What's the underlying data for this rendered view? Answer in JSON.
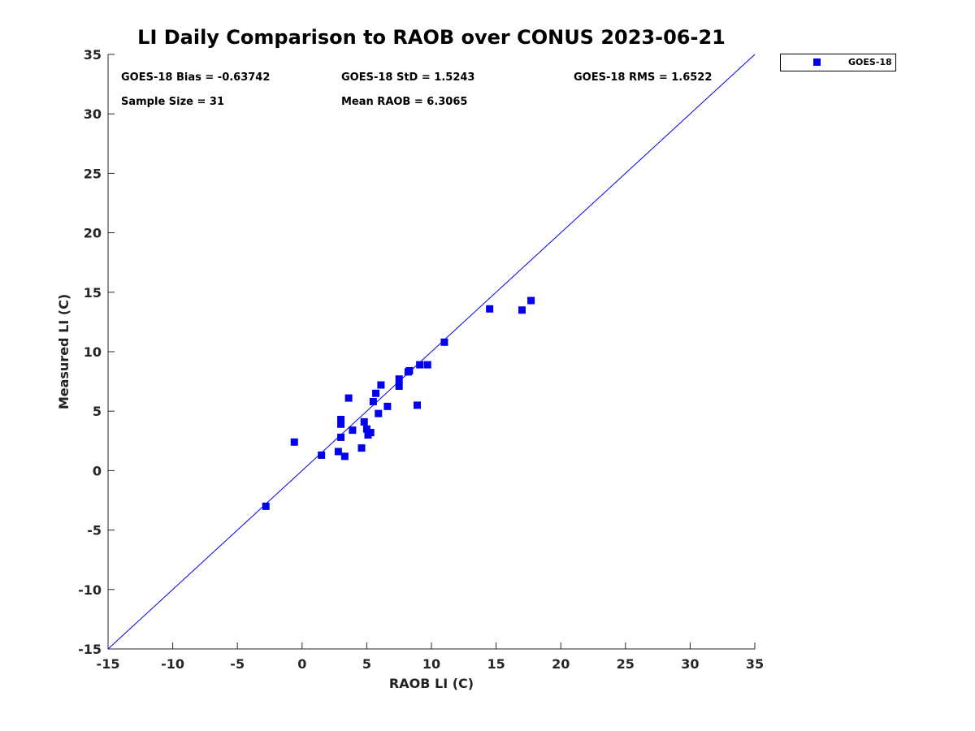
{
  "chart_data": {
    "type": "scatter",
    "title": "LI Daily Comparison to RAOB over CONUS 2023-06-21",
    "xlabel": "RAOB LI (C)",
    "ylabel": "Measured LI (C)",
    "xlim": [
      -15,
      35
    ],
    "ylim": [
      -15,
      35
    ],
    "xticks": [
      -15,
      -10,
      -5,
      0,
      5,
      10,
      15,
      20,
      25,
      30,
      35
    ],
    "yticks": [
      -15,
      -10,
      -5,
      0,
      5,
      10,
      15,
      20,
      25,
      30,
      35
    ],
    "grid": false,
    "legend_position": "outside-top-right",
    "reference_line": {
      "type": "1:1",
      "color": "#0000ee"
    },
    "series": [
      {
        "name": "GOES-18",
        "color": "#0000ee",
        "marker": "square",
        "points": [
          [
            -2.8,
            -3.0
          ],
          [
            -0.6,
            2.4
          ],
          [
            1.5,
            1.3
          ],
          [
            2.8,
            1.6
          ],
          [
            3.0,
            2.8
          ],
          [
            3.0,
            3.9
          ],
          [
            3.0,
            4.3
          ],
          [
            3.3,
            1.2
          ],
          [
            3.6,
            6.1
          ],
          [
            3.9,
            3.4
          ],
          [
            4.6,
            1.9
          ],
          [
            4.8,
            4.1
          ],
          [
            5.0,
            3.5
          ],
          [
            5.1,
            3.0
          ],
          [
            5.3,
            3.2
          ],
          [
            5.5,
            5.8
          ],
          [
            5.7,
            6.5
          ],
          [
            5.9,
            4.8
          ],
          [
            6.1,
            7.2
          ],
          [
            6.6,
            5.4
          ],
          [
            7.5,
            7.7
          ],
          [
            7.5,
            7.1
          ],
          [
            8.2,
            8.3
          ],
          [
            8.3,
            8.4
          ],
          [
            8.9,
            5.5
          ],
          [
            9.1,
            8.9
          ],
          [
            9.7,
            8.9
          ],
          [
            11.0,
            10.8
          ],
          [
            14.5,
            13.6
          ],
          [
            17.0,
            13.5
          ],
          [
            17.7,
            14.3
          ]
        ]
      }
    ]
  },
  "stats": {
    "bias": "GOES-18 Bias = -0.63742",
    "std": "GOES-18 StD = 1.5243",
    "rms": "GOES-18 RMS = 1.6522",
    "sample_size": "Sample Size = 31",
    "mean_raob": "Mean RAOB = 6.3065"
  },
  "legend": {
    "label": "GOES-18"
  }
}
